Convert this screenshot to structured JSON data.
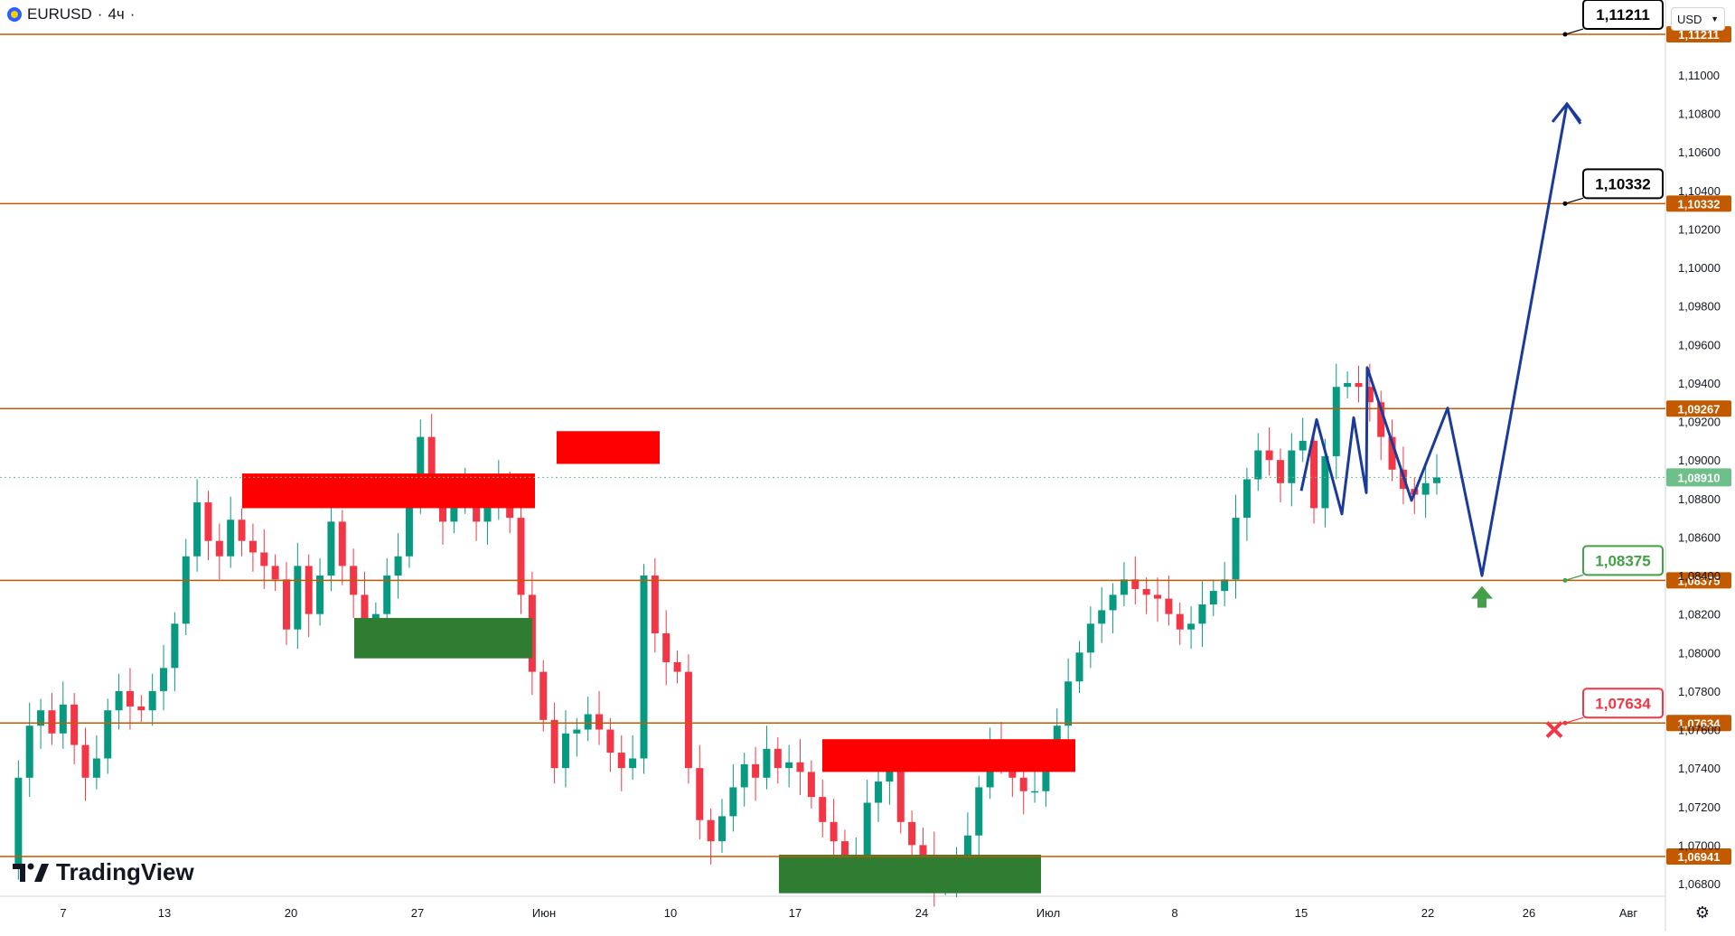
{
  "header": {
    "symbol": "EURUSD",
    "interval": "4ч"
  },
  "currency_selector": {
    "value": "USD"
  },
  "branding": {
    "logo_text": "TradingView"
  },
  "colors": {
    "level_line": "#c45a00",
    "target_box_border": "#000000",
    "support_green": "#43a047",
    "stop_red": "#f23645",
    "zone_red": "#ff0000",
    "zone_green": "#2e7d32",
    "projection_blue": "#1a3a9c",
    "candle_up": "#089981",
    "candle_down": "#f23645",
    "current_price_tag": "#6fbf8a"
  },
  "chart_data": {
    "type": "candlestick",
    "symbol": "EURUSD",
    "timeframe": "4ч",
    "y_axis": {
      "ticks": [
        "1,06800",
        "1,07000",
        "1,07200",
        "1,07400",
        "1,07600",
        "1,07800",
        "1,08000",
        "1,08200",
        "1,08400",
        "1,08600",
        "1,08800",
        "1,09000",
        "1,09200",
        "1,09400",
        "1,09600",
        "1,09800",
        "1,10000",
        "1,10200",
        "1,10400",
        "1,10600",
        "1,10800",
        "1,11000"
      ],
      "range": [
        1.067,
        1.114
      ]
    },
    "x_axis": {
      "ticks": [
        "7",
        "13",
        "20",
        "27",
        "Июн",
        "10",
        "17",
        "24",
        "Июл",
        "8",
        "15",
        "22",
        "26",
        "Авг"
      ]
    },
    "horizontal_levels": [
      {
        "value": 1.11211,
        "label": "1,11211"
      },
      {
        "value": 1.10332,
        "label": "1,10332"
      },
      {
        "value": 1.09267,
        "label": "1,09267"
      },
      {
        "value": 1.08375,
        "label": "1,08375"
      },
      {
        "value": 1.07634,
        "label": "1,07634"
      },
      {
        "value": 1.06941,
        "label": "1,06941"
      }
    ],
    "current_price": {
      "value": 1.0891,
      "label": "1,08910"
    },
    "callouts": [
      {
        "label": "1,11211",
        "value": 1.11211,
        "style": "target"
      },
      {
        "label": "1,10332",
        "value": 1.10332,
        "style": "target"
      },
      {
        "label": "1,08375",
        "value": 1.08375,
        "style": "entry"
      },
      {
        "label": "1,07634",
        "value": 1.07634,
        "style": "stop"
      }
    ],
    "price_path": [
      1.069,
      1.0735,
      1.0762,
      1.077,
      1.0758,
      1.0773,
      1.0752,
      1.0735,
      1.0745,
      1.077,
      1.078,
      1.0772,
      1.077,
      1.078,
      1.0792,
      1.0815,
      1.085,
      1.0878,
      1.0858,
      1.085,
      1.0869,
      1.0858,
      1.0852,
      1.0845,
      1.0838,
      1.0812,
      1.0845,
      1.082,
      1.084,
      1.0868,
      1.0845,
      1.083,
      1.0808,
      1.082,
      1.084,
      1.085,
      1.088,
      1.0912,
      1.0885,
      1.0868,
      1.088,
      1.0884,
      1.0868,
      1.0875,
      1.0888,
      1.087,
      1.083,
      1.079,
      1.0765,
      1.074,
      1.0758,
      1.076,
      1.0768,
      1.076,
      1.0748,
      1.074,
      1.0745,
      1.084,
      1.081,
      1.0795,
      1.079,
      1.074,
      1.0713,
      1.0702,
      1.0715,
      1.073,
      1.0742,
      1.0735,
      1.075,
      1.074,
      1.0743,
      1.0738,
      1.0725,
      1.0712,
      1.0702,
      1.0695,
      1.0695,
      1.0722,
      1.0733,
      1.074,
      1.0712,
      1.07,
      1.0695,
      1.068,
      1.0681,
      1.069,
      1.0705,
      1.073,
      1.0752,
      1.0745,
      1.0735,
      1.0728,
      1.0728,
      1.0748,
      1.0762,
      1.0785,
      1.08,
      1.0815,
      1.0822,
      1.083,
      1.0838,
      1.0833,
      1.083,
      1.0828,
      1.082,
      1.0812,
      1.0815,
      1.0825,
      1.0832,
      1.0838,
      1.087,
      1.089,
      1.0905,
      1.09,
      1.0888,
      1.0905,
      1.091,
      1.0875,
      1.0902,
      1.0938,
      1.094,
      1.0938,
      1.093,
      1.0912,
      1.0895,
      1.0885,
      1.0882,
      1.0888,
      1.0891
    ],
    "projection_path": [
      1.0884,
      1.0921,
      1.0872,
      1.0922,
      1.0883,
      1.0948,
      1.0879,
      1.0927,
      1.084,
      1.1085,
      1.1076
    ],
    "zones": [
      {
        "type": "supply",
        "from": 1.0893,
        "to": 1.0875
      },
      {
        "type": "supply",
        "from": 1.0915,
        "to": 1.0898
      },
      {
        "type": "supply",
        "from": 1.0755,
        "to": 1.0738
      },
      {
        "type": "demand",
        "from": 1.0818,
        "to": 1.0797
      },
      {
        "type": "demand",
        "from": 1.0695,
        "to": 1.0675
      }
    ],
    "annotations": [
      {
        "type": "arrow-up",
        "value": 1.0828
      },
      {
        "type": "cross",
        "value": 1.076
      }
    ]
  }
}
